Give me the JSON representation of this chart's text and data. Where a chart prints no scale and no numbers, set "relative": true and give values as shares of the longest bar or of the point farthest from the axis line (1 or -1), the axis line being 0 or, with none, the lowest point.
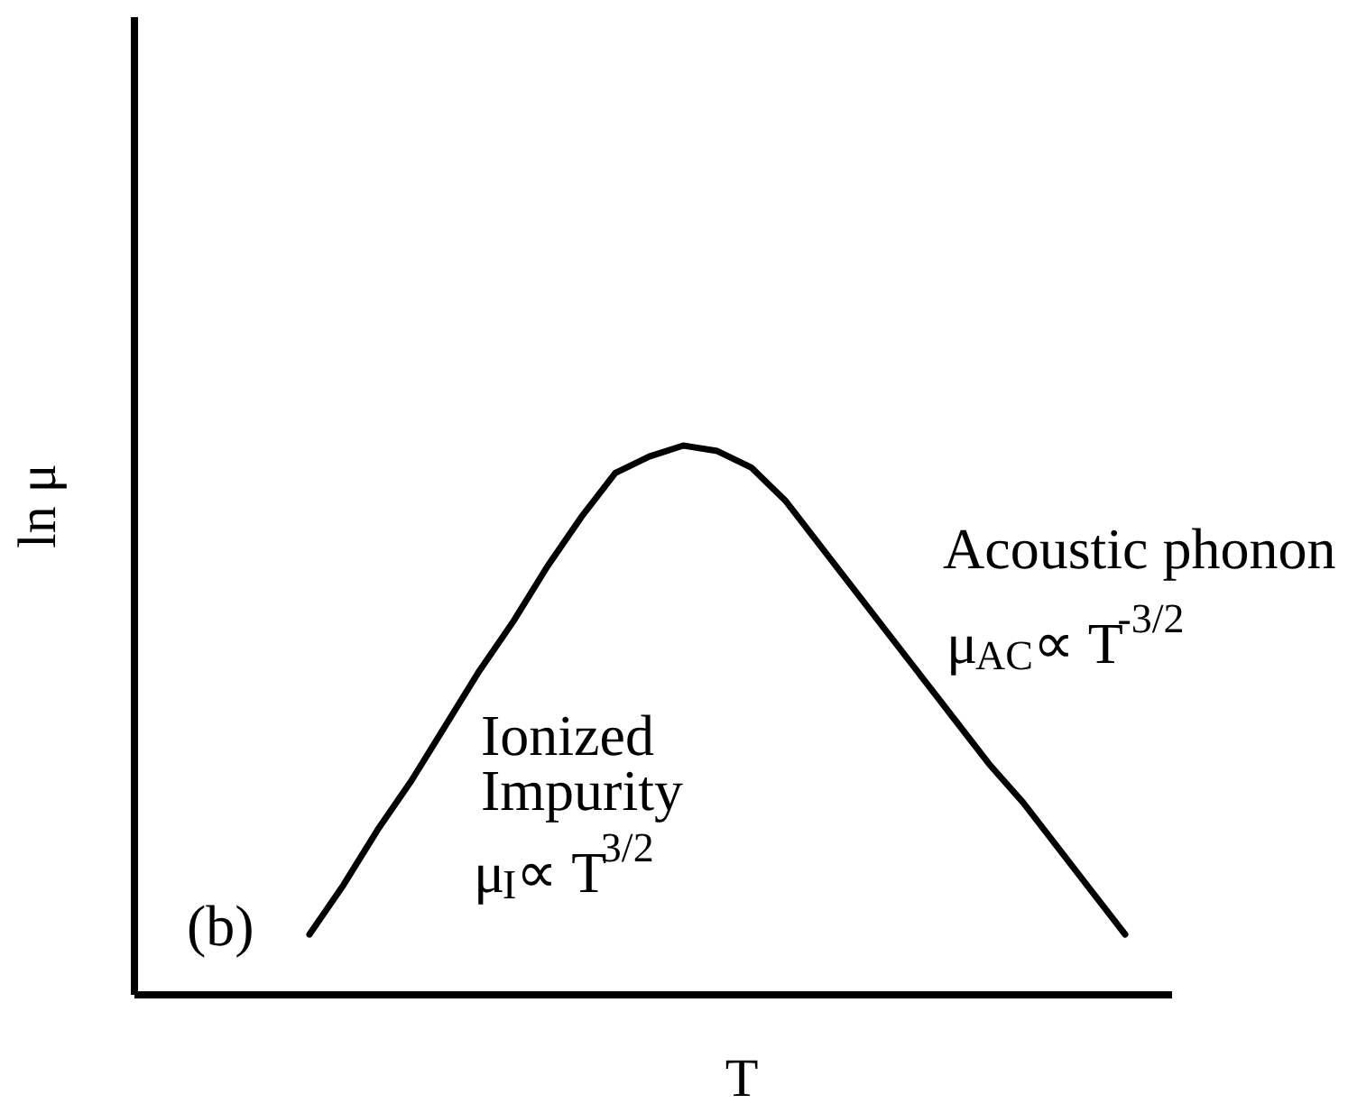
{
  "chart_data": {
    "type": "line",
    "relative": true,
    "xlabel": "T",
    "ylabel": "ln μ",
    "categories": [
      null,
      null,
      null,
      null,
      null,
      null,
      null,
      null,
      null,
      null,
      null,
      null,
      null,
      null,
      null,
      null,
      null,
      null,
      null,
      null,
      null,
      null,
      null,
      null,
      null
    ],
    "series": [
      {
        "color": "#000000",
        "values": [
          0.11,
          0.2,
          0.3,
          0.39,
          0.49,
          0.59,
          0.68,
          0.78,
          0.87,
          0.95,
          0.98,
          1,
          0.99,
          0.96,
          0.9,
          0.82,
          0.74,
          0.66,
          0.58,
          0.5,
          0.42,
          0.35,
          0.27,
          0.19,
          0.11
        ]
      }
    ],
    "line_style": "solid",
    "annotations": [
      "(b)",
      "Ionized\nImpurity",
      "μ$_{I}$∝ T$^{3/2}$",
      "Acoustic phonon",
      "μ$_{AC}$∝ T$^{-3/2}$"
    ]
  }
}
